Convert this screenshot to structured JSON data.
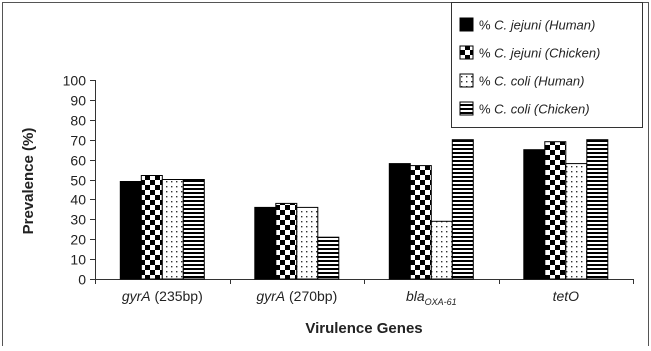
{
  "chart_data": {
    "type": "bar",
    "title": "",
    "xlabel": "Virulence Genes",
    "ylabel": "Prevalence (%)",
    "ylim": [
      0,
      100
    ],
    "yticks": [
      0,
      10,
      20,
      30,
      40,
      50,
      60,
      70,
      80,
      90,
      100
    ],
    "grid": false,
    "legend_position": "top-right",
    "categories": [
      {
        "italic": "gyrA",
        "plain": " (235bp)",
        "sub": ""
      },
      {
        "italic": "gyrA",
        "plain": " (270bp)",
        "sub": ""
      },
      {
        "italic": "bla",
        "plain": "",
        "sub": "OXA-61"
      },
      {
        "italic": "tetO",
        "plain": "",
        "sub": ""
      }
    ],
    "series": [
      {
        "name_prefix": "% ",
        "name_italic": "C. jejuni (Human)",
        "pattern": "solid",
        "values": [
          49,
          36,
          58,
          65
        ]
      },
      {
        "name_prefix": "% ",
        "name_italic": "C. jejuni (Chicken)",
        "pattern": "checker",
        "values": [
          52,
          38,
          57,
          69
        ]
      },
      {
        "name_prefix": "% ",
        "name_italic": "C. coli (Human)",
        "pattern": "dots",
        "values": [
          50,
          36,
          29,
          58
        ]
      },
      {
        "name_prefix": "% ",
        "name_italic": "C. coli (Chicken)",
        "pattern": "hstripes",
        "values": [
          50,
          21,
          70,
          70
        ]
      }
    ]
  }
}
